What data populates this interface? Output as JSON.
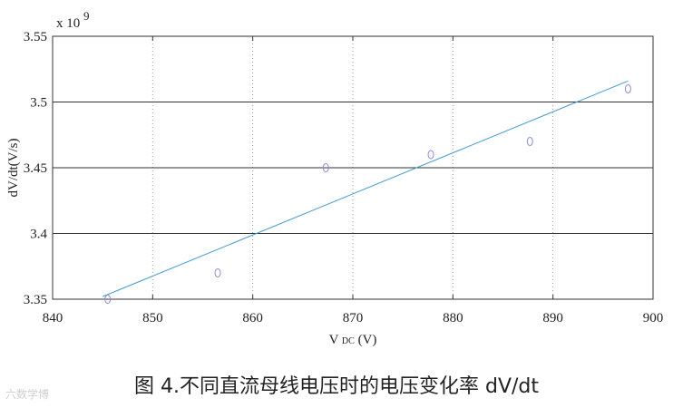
{
  "chart_data": {
    "type": "scatter",
    "xlabel_main": "V",
    "xlabel_sub": "DC",
    "xlabel_unit": "(V)",
    "ylabel": "dV/dt(V/s)",
    "y_multiplier": "x 10",
    "y_exponent": "9",
    "xlim": [
      840,
      900
    ],
    "ylim": [
      3.35,
      3.55
    ],
    "x_ticks": [
      840,
      850,
      860,
      870,
      880,
      890,
      900
    ],
    "y_ticks": [
      3.35,
      3.4,
      3.45,
      3.5,
      3.55
    ],
    "y_tick_labels": [
      "3.35",
      "3.4",
      "3.45",
      "3.5",
      "3.55"
    ],
    "points": [
      {
        "x": 845.5,
        "y": 3.35
      },
      {
        "x": 856.5,
        "y": 3.37
      },
      {
        "x": 867.3,
        "y": 3.45
      },
      {
        "x": 877.8,
        "y": 3.46
      },
      {
        "x": 887.7,
        "y": 3.47
      },
      {
        "x": 897.5,
        "y": 3.51
      }
    ],
    "fit_line": {
      "x": [
        845,
        897.5
      ],
      "y": [
        3.352,
        3.516
      ]
    },
    "colors": {
      "points": "#8a8adf",
      "fit": "#3b9ad0",
      "grid_major": "#333333",
      "grid_minor": "#999999"
    }
  },
  "caption": "图 4.不同直流母线电压时的电压变化率 dV/dt",
  "watermark": "六数学博"
}
